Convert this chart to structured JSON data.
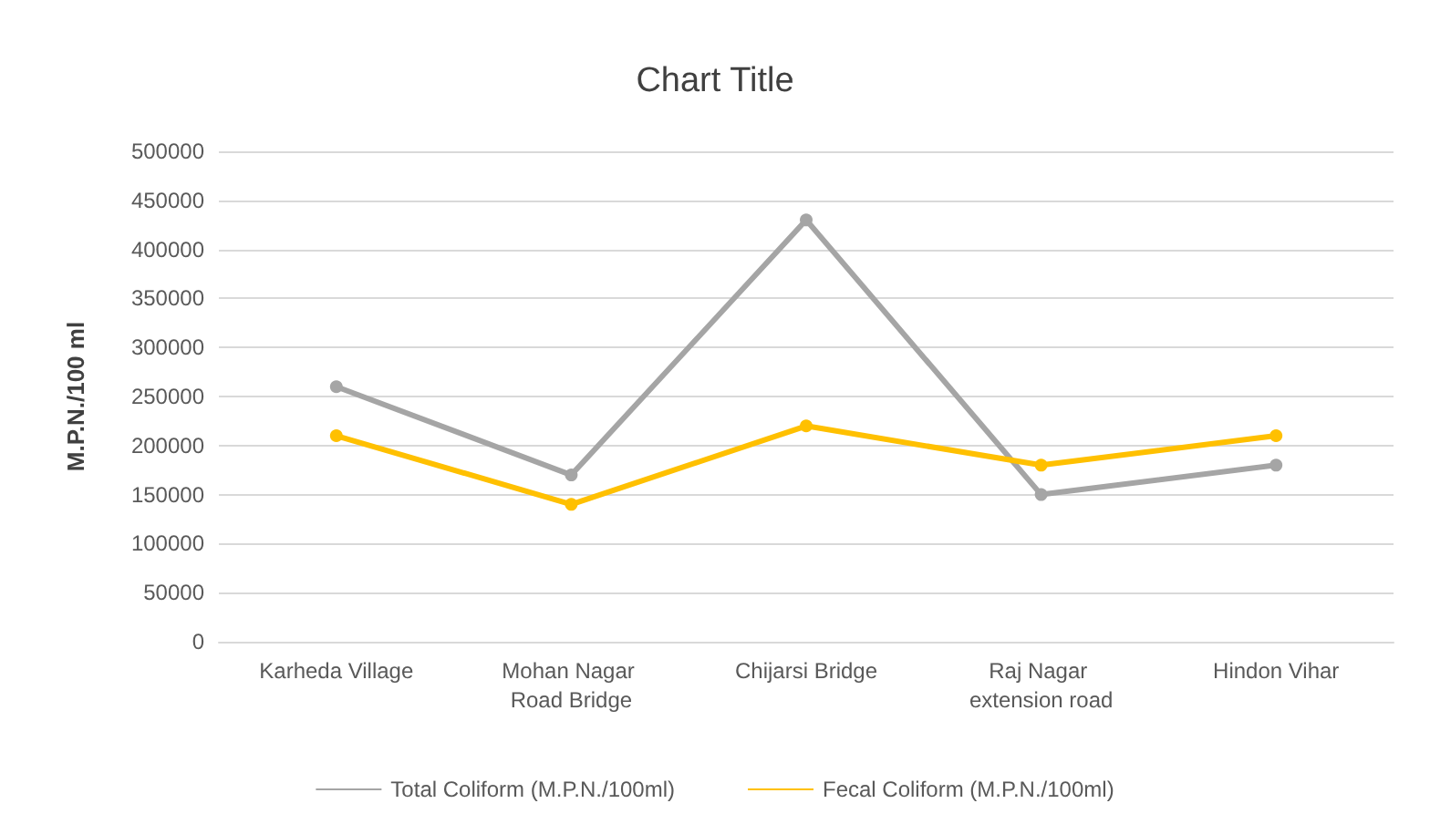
{
  "chart_data": {
    "type": "line",
    "title": "Chart Title",
    "ylabel": "M.P.N./100 ml",
    "categories": [
      "Karheda Village",
      "Mohan Nagar Road Bridge",
      "Chijarsi Bridge",
      "Raj Nagar extension road",
      "Hindon Vihar"
    ],
    "series": [
      {
        "name": "Total Coliform (M.P.N./100ml)",
        "color": "#a5a5a5",
        "values": [
          260000,
          170000,
          430000,
          150000,
          180000
        ]
      },
      {
        "name": "Fecal Coliform (M.P.N./100ml)",
        "color": "#ffc000",
        "values": [
          210000,
          140000,
          220000,
          180000,
          210000
        ]
      }
    ],
    "ylim": [
      0,
      500000
    ],
    "yticks": [
      0,
      50000,
      100000,
      150000,
      200000,
      250000,
      300000,
      350000,
      400000,
      450000,
      500000
    ],
    "grid": "y",
    "legend": "bottom",
    "marker": "circle",
    "line_style": "solid"
  }
}
